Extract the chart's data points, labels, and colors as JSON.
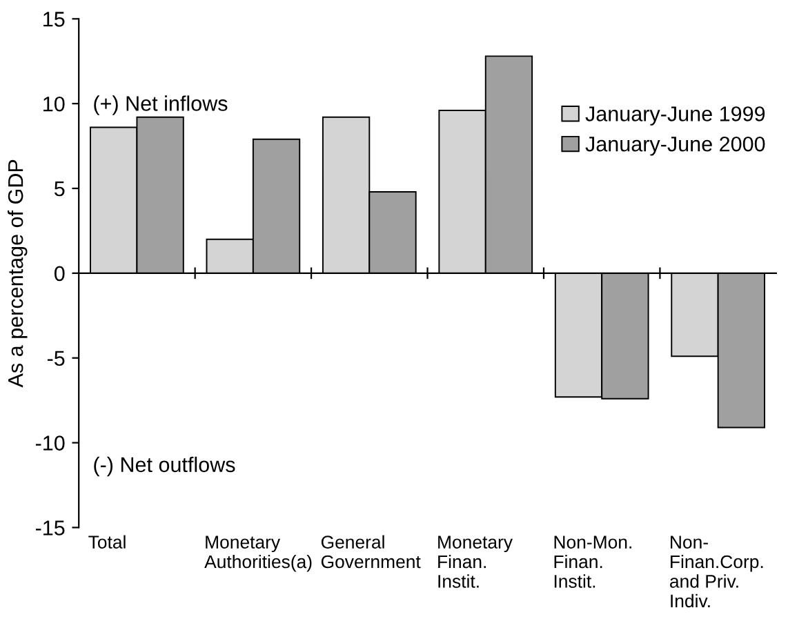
{
  "chart_data": {
    "type": "bar",
    "ylabel": "As a percentage of GDP",
    "categories": [
      "Total",
      "Monetary\nAuthorities(a)",
      "General\nGovernment",
      "Monetary\nFinan.\nInstit.",
      "Non-Mon.\nFinan.\nInstit.",
      "Non-\nFinan.Corp.\nand Priv.\nIndiv."
    ],
    "series": [
      {
        "name": "January-June 1999",
        "color": "#d4d4d4",
        "values": [
          8.6,
          2.0,
          9.2,
          9.6,
          -7.3,
          -4.9
        ]
      },
      {
        "name": "January-June 2000",
        "color": "#a0a0a0",
        "values": [
          9.2,
          7.9,
          4.8,
          12.8,
          -7.4,
          -9.1
        ]
      }
    ],
    "ylim": [
      -15,
      15
    ],
    "yticks": [
      -15,
      -10,
      -5,
      0,
      5,
      10,
      15
    ],
    "legend": "right",
    "annotations": [
      "(+) Net inflows",
      "(-) Net outflows"
    ]
  }
}
